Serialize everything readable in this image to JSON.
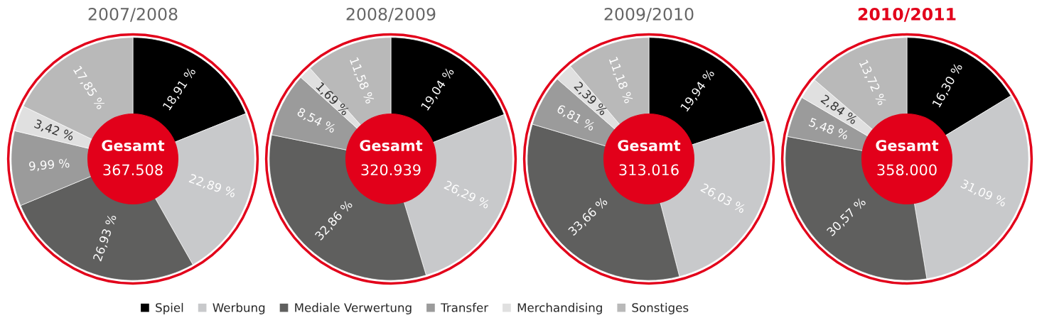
{
  "chart_data": [
    {
      "type": "donut",
      "title": "2007/2008",
      "categories": [
        "Spiel",
        "Werbung",
        "Mediale Verwertung",
        "Transfer",
        "Merchandising",
        "Sonstiges"
      ],
      "values": [
        18.91,
        22.89,
        26.93,
        9.99,
        3.42,
        17.85
      ],
      "value_labels": [
        "18,91 %",
        "22,89 %",
        "26,93 %",
        "9,99 %",
        "3,42 %",
        "17,85 %"
      ],
      "colors": [
        "#000000",
        "#c8c9cb",
        "#5f5f5e",
        "#9b9b9b",
        "#e0e0e0",
        "#b9b9b9"
      ],
      "annotations": [
        "Gesamt",
        "367.508"
      ],
      "legend": "bottom"
    },
    {
      "type": "donut",
      "title": "2008/2009",
      "values": [
        19.04,
        26.29,
        32.86,
        8.54,
        1.69,
        11.58
      ],
      "value_labels": [
        "19,04 %",
        "26,29 %",
        "32,86 %",
        "8,54 %",
        "1,69 %",
        "11,58 %"
      ],
      "colors": [
        "#000000",
        "#c8c9cb",
        "#5f5f5e",
        "#9b9b9b",
        "#e0e0e0",
        "#b9b9b9"
      ],
      "annotations": [
        "Gesamt",
        "320.939"
      ]
    },
    {
      "type": "donut",
      "title": "2009/2010",
      "values": [
        19.94,
        26.03,
        33.66,
        6.81,
        2.39,
        11.18
      ],
      "value_labels": [
        "19,94 %",
        "26,03 %",
        "33,66 %",
        "6,81 %",
        "2,39 %",
        "11,18 %"
      ],
      "colors": [
        "#000000",
        "#c8c9cb",
        "#5f5f5e",
        "#9b9b9b",
        "#e0e0e0",
        "#b9b9b9"
      ],
      "annotations": [
        "Gesamt",
        "313.016"
      ]
    },
    {
      "type": "donut",
      "title": "2010/2011",
      "values": [
        16.3,
        31.09,
        30.57,
        5.48,
        2.84,
        13.72
      ],
      "value_labels": [
        "16,30 %",
        "31,09 %",
        "30,57 %",
        "5,48 %",
        "2,84 %",
        "13,72 %"
      ],
      "colors": [
        "#000000",
        "#c8c9cb",
        "#5f5f5e",
        "#9b9b9b",
        "#e0e0e0",
        "#b9b9b9"
      ],
      "annotations": [
        "Gesamt",
        "358.000"
      ]
    }
  ]
}
